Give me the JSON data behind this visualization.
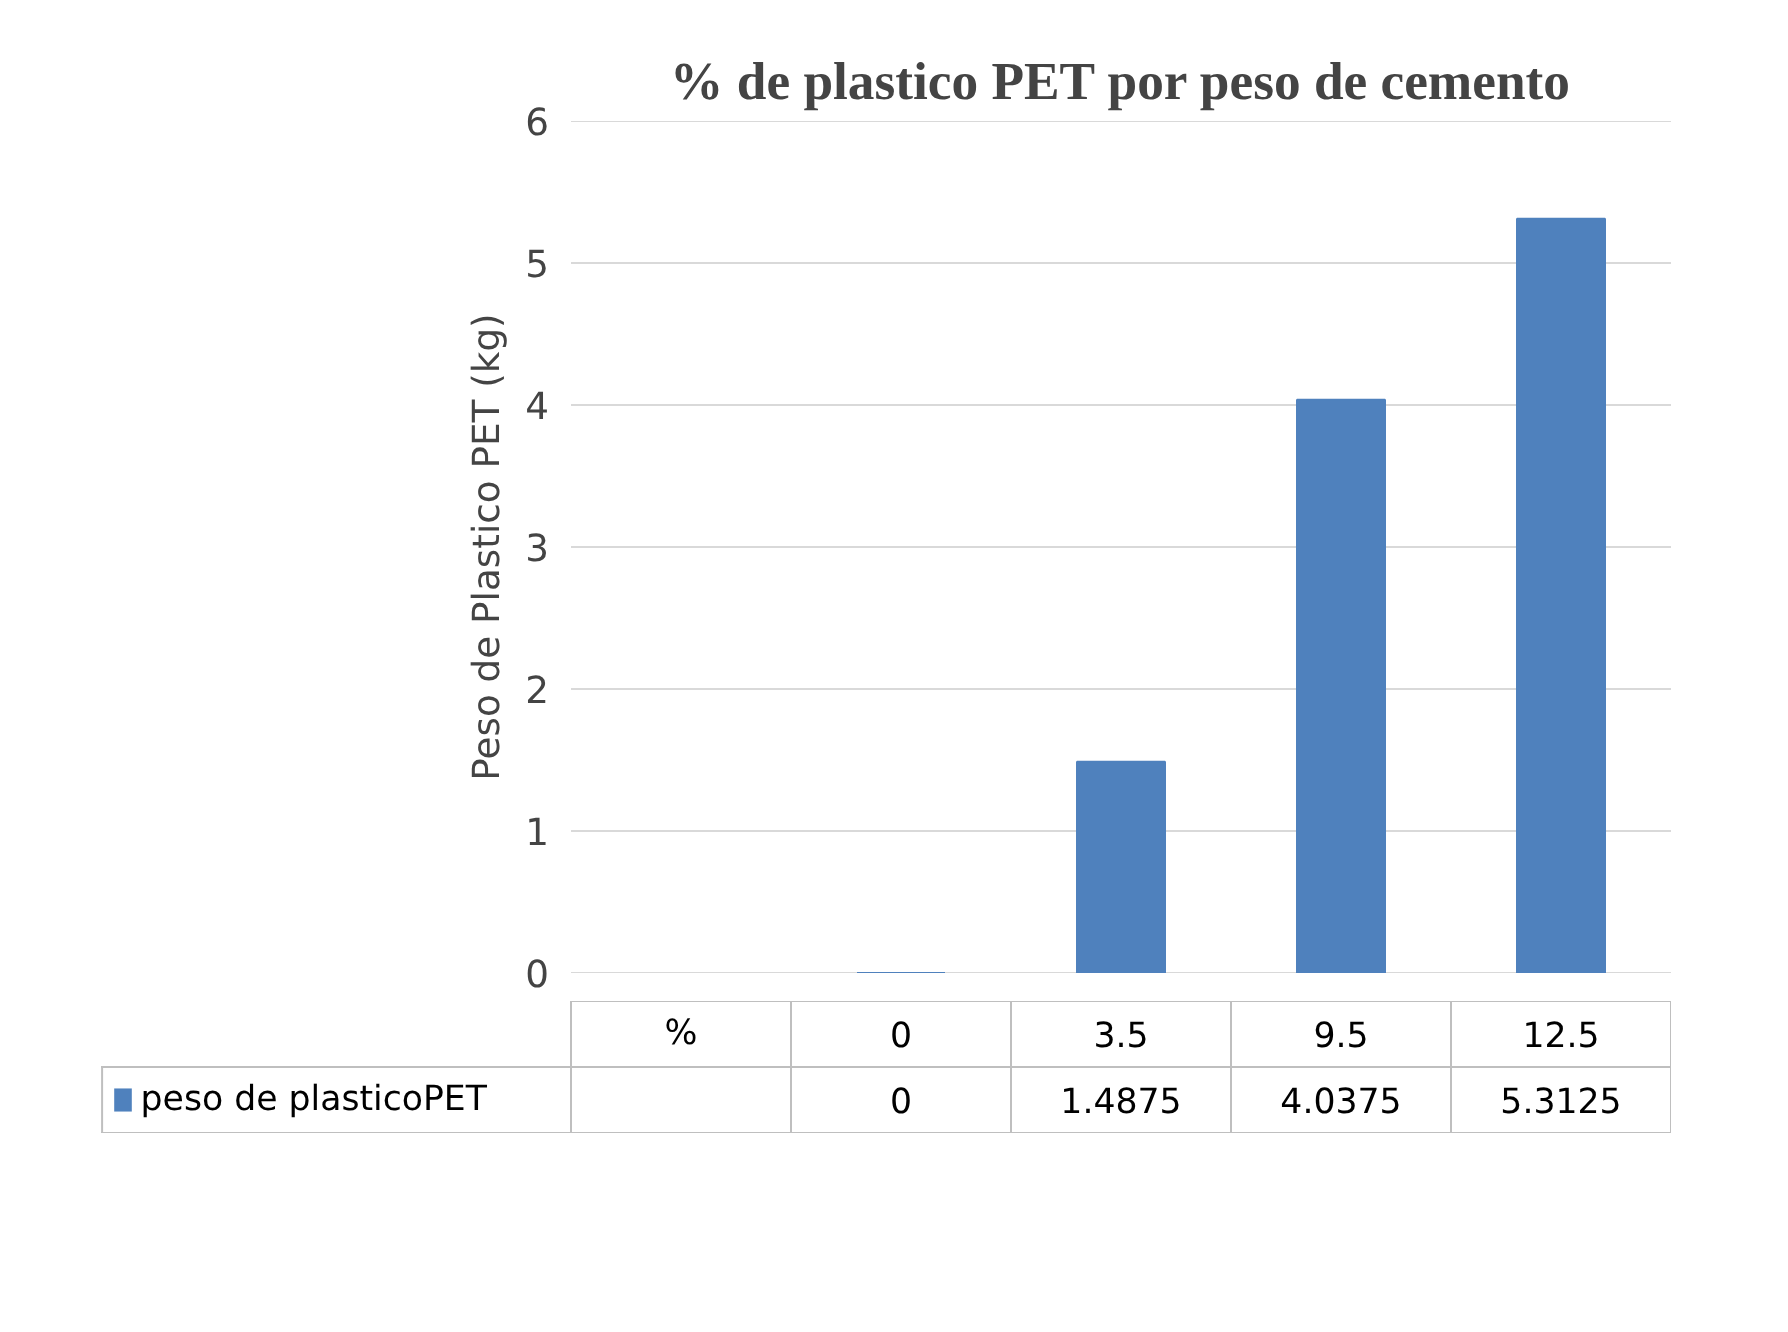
{
  "chart_data": {
    "type": "bar",
    "title": "% de plastico PET por peso de cemento",
    "ylabel": "Peso de Plastico PET (kg)",
    "categories": [
      "%",
      "0",
      "3.5",
      "9.5",
      "12.5"
    ],
    "series": [
      {
        "name": "peso de plasticoPET",
        "color": "#4f81bd",
        "values": [
          null,
          0,
          1.4875,
          4.0375,
          5.3125
        ]
      }
    ],
    "ylim": [
      0,
      6
    ],
    "yticks": [
      0,
      1,
      2,
      3,
      4,
      5,
      6
    ],
    "grid": "y",
    "legend": "bottom",
    "data_labels": true
  }
}
